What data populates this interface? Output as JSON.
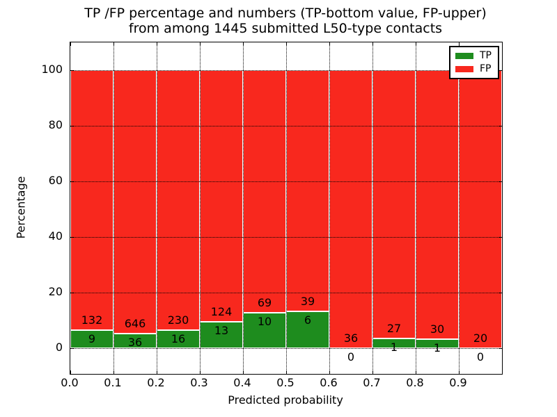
{
  "figure": {
    "title_lines": [
      "TP /FP percentage and numbers (TP-bottom value, FP-upper)",
      "from among 1445 submitted L50-type contacts"
    ]
  },
  "chart_data": {
    "type": "bar",
    "stacked": true,
    "normalized": "each bin stacked to 100%",
    "title": "TP /FP percentage and numbers (TP-bottom value, FP-upper)\nfrom among 1445 submitted L50-type contacts",
    "xlabel": "Predicted probability",
    "ylabel": "Percentage",
    "total_contacts": 1445,
    "categories": [
      "0.0-0.1",
      "0.1-0.2",
      "0.2-0.3",
      "0.3-0.4",
      "0.4-0.5",
      "0.5-0.6",
      "0.6-0.7",
      "0.7-0.8",
      "0.8-0.9",
      "0.9-1.0"
    ],
    "series": [
      {
        "name": "TP",
        "color": "#1e8c1e",
        "counts": [
          9,
          36,
          16,
          13,
          10,
          6,
          0,
          1,
          1,
          0
        ]
      },
      {
        "name": "FP",
        "color": "#f8281e",
        "counts": [
          132,
          646,
          230,
          124,
          69,
          39,
          36,
          27,
          30,
          20
        ]
      }
    ],
    "tp_percent_per_bin": [
      6.4,
      5.3,
      6.5,
      9.5,
      12.7,
      13.3,
      0.0,
      3.6,
      3.2,
      0.0
    ],
    "xticks": [
      "0.0",
      "0.1",
      "0.2",
      "0.3",
      "0.4",
      "0.5",
      "0.6",
      "0.7",
      "0.8",
      "0.9"
    ],
    "yticks": [
      0,
      20,
      40,
      60,
      80,
      100
    ],
    "xlim": [
      0.0,
      1.0
    ],
    "ylim": [
      -9.25,
      110
    ],
    "grid": "dotted black, horizontal at yticks and vertical at xticks",
    "legend": {
      "position": "upper right",
      "entries": [
        "TP",
        "FP"
      ]
    }
  }
}
